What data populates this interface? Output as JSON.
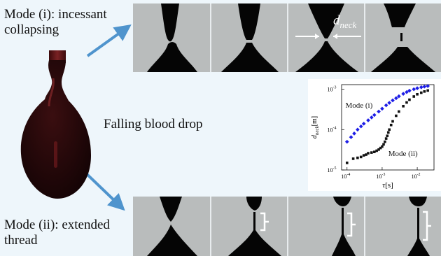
{
  "labels": {
    "mode_i": "Mode (i): incessant\ncollapsing",
    "falling_drop": "Falling blood drop",
    "mode_ii": "Mode (ii): extended\nthread"
  },
  "annotation": {
    "d_neck_main": "d",
    "d_neck_sub": "neck"
  },
  "colors": {
    "drop": "#2a0a0c",
    "drop_highlight": "#6e1a1c",
    "arrow": "#4f94cd",
    "frame_bg": "#b9bcbc",
    "fluid": "#050505",
    "series_mode_i": "#1d1de6",
    "series_mode_ii": "#111111"
  },
  "chart_data": {
    "type": "scatter",
    "xlabel_main": "τ",
    "xlabel_unit": "[s]",
    "ylabel_main": "d",
    "ylabel_sub": "neck",
    "ylabel_unit": "[m]",
    "x_scale": "log",
    "y_scale": "log",
    "xlim": [
      7e-05,
      0.03
    ],
    "ylim": [
      1e-05,
      0.0013
    ],
    "x_ticks": [
      {
        "value": 0.0001,
        "base": "10",
        "exp": "-4"
      },
      {
        "value": 0.001,
        "base": "10",
        "exp": "-3"
      },
      {
        "value": 0.01,
        "base": "10",
        "exp": "-2"
      }
    ],
    "y_ticks": [
      {
        "value": 1e-05,
        "base": "10",
        "exp": "-5"
      },
      {
        "value": 0.0001,
        "base": "10",
        "exp": "-4"
      },
      {
        "value": 0.001,
        "base": "10",
        "exp": "-3"
      }
    ],
    "annotations": [
      {
        "text": "Mode (i)",
        "x": 9e-05,
        "y": 0.00035
      },
      {
        "text": "Mode (ii)",
        "x": 0.0015,
        "y": 2.2e-05
      }
    ],
    "series": [
      {
        "key": "mode_i",
        "x": [
          0.0001,
          0.00013,
          0.00016,
          0.0002,
          0.00025,
          0.0003,
          0.0004,
          0.0005,
          0.0006,
          0.0008,
          0.001,
          0.0013,
          0.0016,
          0.002,
          0.0025,
          0.003,
          0.004,
          0.005,
          0.006,
          0.008,
          0.01,
          0.013,
          0.016,
          0.02
        ],
        "y": [
          5e-05,
          6.5e-05,
          8e-05,
          0.0001,
          0.00012,
          0.00014,
          0.00017,
          0.0002,
          0.00023,
          0.00028,
          0.00033,
          0.0004,
          0.00046,
          0.00053,
          0.0006,
          0.00067,
          0.00077,
          0.00085,
          0.00092,
          0.001,
          0.00106,
          0.00112,
          0.00116,
          0.0012
        ]
      },
      {
        "key": "mode_ii",
        "x": [
          0.0001,
          0.00015,
          0.0002,
          0.00025,
          0.0003,
          0.00035,
          0.0004,
          0.0005,
          0.0006,
          0.0007,
          0.0008,
          0.0009,
          0.001,
          0.0011,
          0.0012,
          0.0013,
          0.0014,
          0.0015,
          0.0016,
          0.0018,
          0.002,
          0.0025,
          0.003,
          0.004,
          0.005,
          0.006,
          0.008,
          0.01,
          0.013,
          0.016,
          0.02
        ],
        "y": [
          1.5e-05,
          1.9e-05,
          2e-05,
          2.1e-05,
          2.3e-05,
          2.4e-05,
          2.6e-05,
          2.7e-05,
          2.8e-05,
          3e-05,
          3.2e-05,
          3.5e-05,
          3.8e-05,
          4.3e-05,
          5e-05,
          6e-05,
          7e-05,
          8.5e-05,
          0.0001,
          0.00013,
          0.00016,
          0.00022,
          0.00028,
          0.00038,
          0.00047,
          0.00055,
          0.00066,
          0.00075,
          0.00082,
          0.00088,
          0.00093
        ]
      }
    ]
  }
}
